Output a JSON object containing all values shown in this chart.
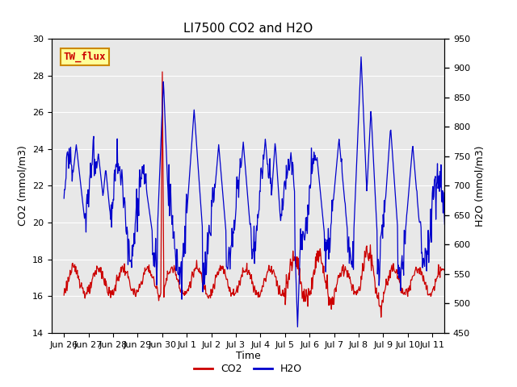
{
  "title": "LI7500 CO2 and H2O",
  "xlabel": "Time",
  "ylabel_left": "CO2 (mmol/m3)",
  "ylabel_right": "H2O (mmol/m3)",
  "ylim_left": [
    14,
    30
  ],
  "ylim_right": [
    450,
    950
  ],
  "yticks_left": [
    14,
    16,
    18,
    20,
    22,
    24,
    26,
    28,
    30
  ],
  "yticks_right": [
    450,
    500,
    550,
    600,
    650,
    700,
    750,
    800,
    850,
    900,
    950
  ],
  "bg_color": "#e8e8e8",
  "fig_bg_color": "#ffffff",
  "co2_color": "#cc0000",
  "h2o_color": "#0000cc",
  "annotation_text": "TW_flux",
  "annotation_bg": "#ffff99",
  "annotation_border": "#cc8800",
  "annotation_text_color": "#cc0000",
  "title_fontsize": 11,
  "axis_fontsize": 9,
  "tick_fontsize": 8,
  "legend_fontsize": 9,
  "xtick_positions": [
    1,
    2,
    3,
    4,
    5,
    6,
    7,
    8,
    9,
    10,
    11,
    12,
    13,
    14,
    15,
    16
  ],
  "xtick_labels": [
    "Jun 26",
    "Jun 27",
    "Jun 28",
    "Jun 29",
    "Jun 30",
    "Jul 1",
    "Jul 2",
    "Jul 3",
    "Jul 4",
    "Jul 5",
    "Jul 6",
    "Jul 7",
    "Jul 8",
    "Jul 9",
    "Jul 10",
    "Jul 11"
  ],
  "xlim": [
    0.5,
    16.5
  ]
}
